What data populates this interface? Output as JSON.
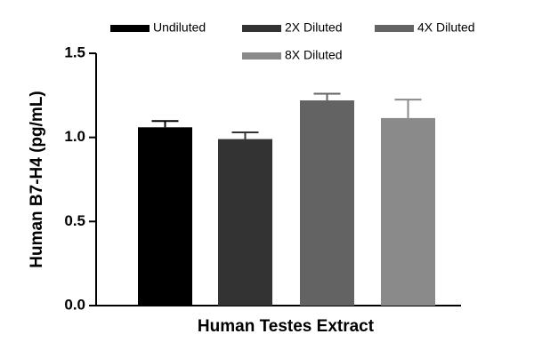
{
  "chart_data": {
    "type": "bar",
    "xlabel": "Human Testes Extract",
    "ylabel": "Human B7-H4 (pg/mL)",
    "series": [
      {
        "name": "Undiluted",
        "color": "#000000",
        "values": [
          1.06
        ],
        "errors": [
          0.037
        ]
      },
      {
        "name": "2X Diluted",
        "color": "#333333",
        "values": [
          0.99
        ],
        "errors": [
          0.04
        ]
      },
      {
        "name": "4X Diluted",
        "color": "#636363",
        "values": [
          1.22
        ],
        "errors": [
          0.04
        ]
      },
      {
        "name": "8X Diluted",
        "color": "#8a8a8a",
        "values": [
          1.115
        ],
        "errors": [
          0.11
        ]
      }
    ],
    "ylim": [
      0,
      1.5
    ],
    "yticks": [
      {
        "value": 0,
        "label": "0.0"
      },
      {
        "value": 0.5,
        "label": "0.5"
      },
      {
        "value": 1,
        "label": "1.0"
      },
      {
        "value": 1.5,
        "label": "1.5"
      }
    ],
    "grid": false
  }
}
